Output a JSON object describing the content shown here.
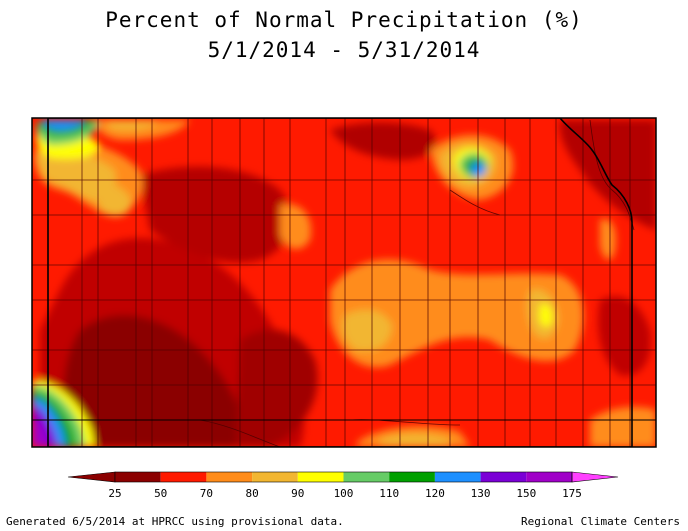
{
  "title": "Percent of Normal Precipitation (%)",
  "date_range": "5/1/2014 - 5/31/2014",
  "legend": {
    "ticks": [
      "25",
      "50",
      "70",
      "80",
      "90",
      "100",
      "110",
      "120",
      "130",
      "150",
      "175"
    ],
    "colors": [
      "#8b0000",
      "#ff1a00",
      "#ff8c1a",
      "#f2b631",
      "#ffff00",
      "#66cc66",
      "#00a000",
      "#1e90ff",
      "#7b00d6",
      "#a000c8",
      "#ff40ff"
    ]
  },
  "footer": {
    "left": "Generated 6/5/2014 at HPRCC using provisional data.",
    "right": "Regional Climate Centers"
  }
}
